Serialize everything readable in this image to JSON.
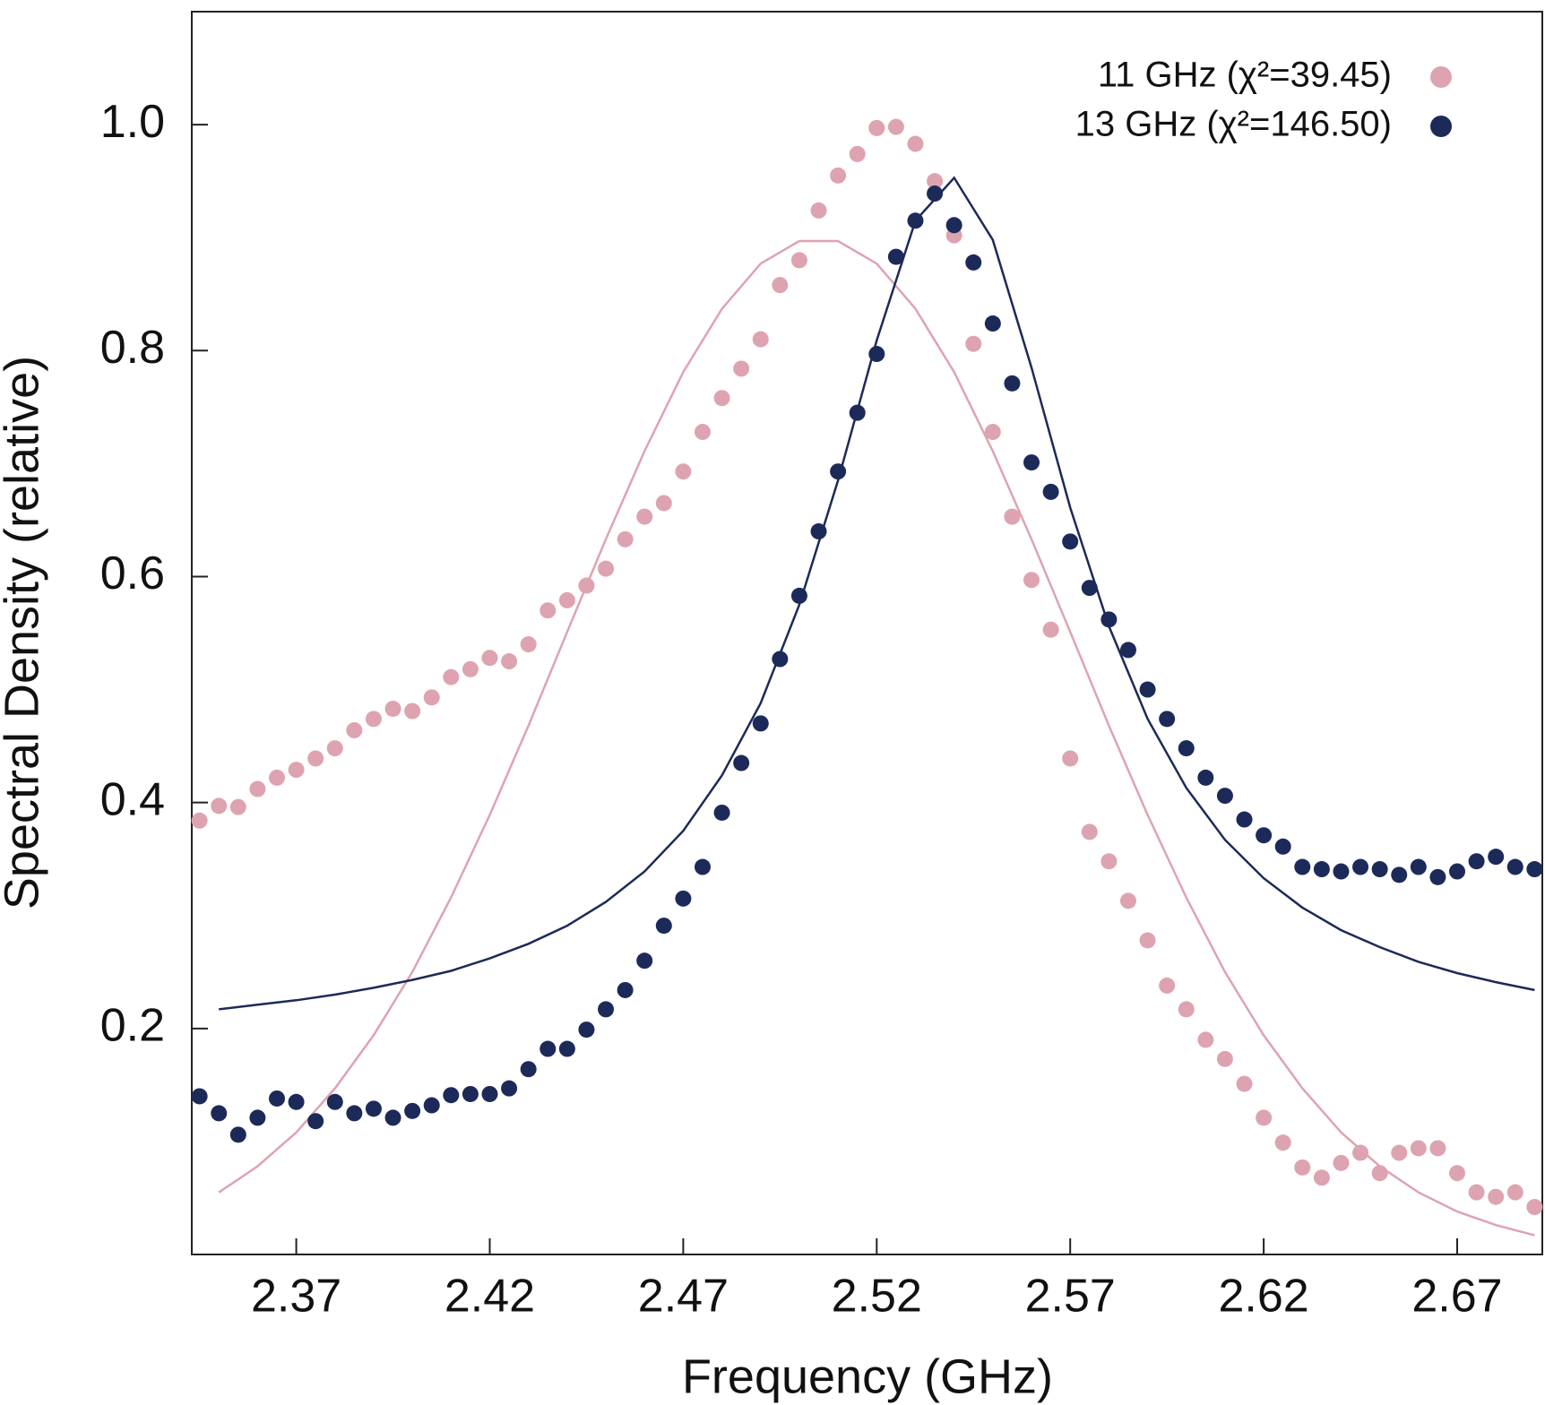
{
  "chart_data": {
    "type": "scatter",
    "x_label": "Frequency (GHz)",
    "y_label": "Spectral Density (relative)",
    "xlim": [
      2.343,
      2.692
    ],
    "ylim": [
      0,
      1.1
    ],
    "xticks": [
      2.37,
      2.42,
      2.47,
      2.52,
      2.57,
      2.62,
      2.67
    ],
    "yticks": [
      0.2,
      0.4,
      0.6,
      0.8,
      {
        "value": 1,
        "label": "1.0"
      }
    ],
    "legend_position": "upper right",
    "series": [
      {
        "name": "11 GHz (χ²=39.45)",
        "color": "#dea3b0",
        "x": [
          2.345,
          2.35,
          2.355,
          2.36,
          2.365,
          2.37,
          2.375,
          2.38,
          2.385,
          2.39,
          2.395,
          2.4,
          2.405,
          2.41,
          2.415,
          2.42,
          2.425,
          2.43,
          2.435,
          2.44,
          2.445,
          2.45,
          2.455,
          2.46,
          2.465,
          2.47,
          2.475,
          2.48,
          2.485,
          2.49,
          2.495,
          2.5,
          2.505,
          2.51,
          2.515,
          2.52,
          2.525,
          2.53,
          2.535,
          2.54,
          2.545,
          2.55,
          2.555,
          2.56,
          2.565,
          2.57,
          2.575,
          2.58,
          2.585,
          2.59,
          2.595,
          2.6,
          2.605,
          2.61,
          2.615,
          2.62,
          2.625,
          2.63,
          2.635,
          2.64,
          2.645,
          2.65,
          2.655,
          2.66,
          2.665,
          2.67,
          2.675,
          2.68,
          2.685,
          2.69
        ],
        "values": [
          0.384,
          0.397,
          0.396,
          0.412,
          0.422,
          0.429,
          0.439,
          0.448,
          0.464,
          0.474,
          0.483,
          0.481,
          0.493,
          0.511,
          0.518,
          0.528,
          0.525,
          0.54,
          0.57,
          0.579,
          0.592,
          0.607,
          0.633,
          0.653,
          0.665,
          0.693,
          0.728,
          0.758,
          0.784,
          0.81,
          0.858,
          0.88,
          0.924,
          0.955,
          0.974,
          0.997,
          0.998,
          0.983,
          0.95,
          0.902,
          0.806,
          0.728,
          0.653,
          0.597,
          0.553,
          0.439,
          0.374,
          0.348,
          0.313,
          0.278,
          0.238,
          0.217,
          0.19,
          0.173,
          0.151,
          0.121,
          0.099,
          0.077,
          0.068,
          0.081,
          0.09,
          0.072,
          0.09,
          0.094,
          0.094,
          0.072,
          0.055,
          0.051,
          0.055,
          0.042
        ]
      },
      {
        "name": "13 GHz (χ²=146.50)",
        "color": "#1c2a5a",
        "x": [
          2.345,
          2.35,
          2.355,
          2.36,
          2.365,
          2.37,
          2.375,
          2.38,
          2.385,
          2.39,
          2.395,
          2.4,
          2.405,
          2.41,
          2.415,
          2.42,
          2.425,
          2.43,
          2.435,
          2.44,
          2.445,
          2.45,
          2.455,
          2.46,
          2.465,
          2.47,
          2.475,
          2.48,
          2.485,
          2.49,
          2.495,
          2.5,
          2.505,
          2.51,
          2.515,
          2.52,
          2.525,
          2.53,
          2.535,
          2.54,
          2.545,
          2.55,
          2.555,
          2.56,
          2.565,
          2.57,
          2.575,
          2.58,
          2.585,
          2.59,
          2.595,
          2.6,
          2.605,
          2.61,
          2.615,
          2.62,
          2.625,
          2.63,
          2.635,
          2.64,
          2.645,
          2.65,
          2.655,
          2.66,
          2.665,
          2.67,
          2.675,
          2.68,
          2.685,
          2.69
        ],
        "values": [
          0.14,
          0.125,
          0.106,
          0.121,
          0.138,
          0.135,
          0.118,
          0.135,
          0.125,
          0.129,
          0.121,
          0.127,
          0.132,
          0.141,
          0.142,
          0.142,
          0.147,
          0.164,
          0.182,
          0.182,
          0.199,
          0.217,
          0.234,
          0.26,
          0.291,
          0.315,
          0.343,
          0.391,
          0.435,
          0.47,
          0.527,
          0.583,
          0.64,
          0.693,
          0.745,
          0.797,
          0.883,
          0.915,
          0.939,
          0.911,
          0.878,
          0.824,
          0.771,
          0.701,
          0.675,
          0.631,
          0.59,
          0.562,
          0.535,
          0.5,
          0.474,
          0.448,
          0.422,
          0.406,
          0.385,
          0.371,
          0.361,
          0.343,
          0.341,
          0.339,
          0.343,
          0.341,
          0.336,
          0.343,
          0.334,
          0.339,
          0.348,
          0.352,
          0.343,
          0.341
        ]
      }
    ],
    "fits": [
      {
        "color": "#dea3b0",
        "x": [
          2.35,
          2.36,
          2.37,
          2.38,
          2.39,
          2.4,
          2.41,
          2.42,
          2.43,
          2.44,
          2.45,
          2.46,
          2.47,
          2.48,
          2.49,
          2.5,
          2.51,
          2.52,
          2.53,
          2.54,
          2.55,
          2.56,
          2.57,
          2.58,
          2.59,
          2.6,
          2.61,
          2.62,
          2.63,
          2.64,
          2.65,
          2.66,
          2.67,
          2.68,
          2.69
        ],
        "values": [
          0.055,
          0.078,
          0.108,
          0.147,
          0.194,
          0.25,
          0.316,
          0.389,
          0.468,
          0.551,
          0.633,
          0.711,
          0.781,
          0.837,
          0.877,
          0.897,
          0.897,
          0.877,
          0.837,
          0.781,
          0.711,
          0.633,
          0.551,
          0.468,
          0.389,
          0.316,
          0.25,
          0.194,
          0.147,
          0.108,
          0.078,
          0.055,
          0.038,
          0.026,
          0.017
        ]
      },
      {
        "color": "#1c2a5a",
        "x": [
          2.35,
          2.36,
          2.37,
          2.38,
          2.39,
          2.4,
          2.41,
          2.42,
          2.43,
          2.44,
          2.45,
          2.46,
          2.47,
          2.48,
          2.49,
          2.5,
          2.51,
          2.52,
          2.53,
          2.54,
          2.55,
          2.56,
          2.57,
          2.58,
          2.59,
          2.6,
          2.61,
          2.62,
          2.63,
          2.64,
          2.65,
          2.66,
          2.67,
          2.68,
          2.69
        ],
        "values": [
          0.217,
          0.221,
          0.225,
          0.23,
          0.236,
          0.243,
          0.251,
          0.262,
          0.275,
          0.291,
          0.312,
          0.339,
          0.375,
          0.424,
          0.488,
          0.575,
          0.685,
          0.809,
          0.915,
          0.953,
          0.898,
          0.785,
          0.661,
          0.556,
          0.474,
          0.413,
          0.367,
          0.333,
          0.307,
          0.287,
          0.272,
          0.259,
          0.249,
          0.241,
          0.234
        ]
      }
    ]
  }
}
